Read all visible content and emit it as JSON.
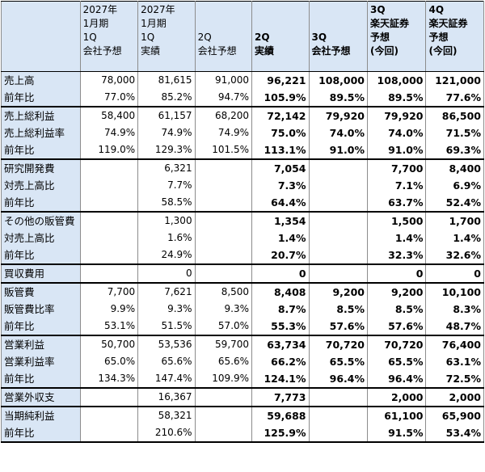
{
  "headers": [
    {
      "lines": [
        ""
      ],
      "bold": false
    },
    {
      "lines": [
        "2027年",
        "1月期",
        "1Q",
        "会社予想"
      ],
      "bold": false
    },
    {
      "lines": [
        "2027年",
        "1月期",
        "1Q",
        "実績"
      ],
      "bold": false
    },
    {
      "lines": [
        "",
        "",
        "2Q",
        "会社予想"
      ],
      "bold": false
    },
    {
      "lines": [
        "",
        "",
        "2Q",
        "実績"
      ],
      "bold": true
    },
    {
      "lines": [
        "",
        "",
        "3Q",
        "会社予想"
      ],
      "bold": true
    },
    {
      "lines": [
        "3Q",
        "楽天証券",
        "予想",
        "(今回)"
      ],
      "bold": true
    },
    {
      "lines": [
        "4Q",
        "楽天証券",
        "予想",
        "(今回)"
      ],
      "bold": true
    }
  ],
  "rows": [
    {
      "label": "売上高",
      "cells": [
        "78,000",
        "81,615",
        "91,000",
        "96,221",
        "108,000",
        "108,000",
        "121,000"
      ],
      "group_start": true
    },
    {
      "label": "前年比",
      "cells": [
        "77.0%",
        "85.2%",
        "94.7%",
        "105.9%",
        "89.5%",
        "89.5%",
        "77.6%"
      ]
    },
    {
      "label": "売上総利益",
      "cells": [
        "58,400",
        "61,157",
        "68,200",
        "72,142",
        "79,920",
        "79,920",
        "86,500"
      ],
      "group_start": true
    },
    {
      "label": "売上総利益率",
      "cells": [
        "74.9%",
        "74.9%",
        "74.9%",
        "75.0%",
        "74.0%",
        "74.0%",
        "71.5%"
      ]
    },
    {
      "label": "前年比",
      "cells": [
        "119.0%",
        "129.3%",
        "101.5%",
        "113.1%",
        "91.0%",
        "91.0%",
        "69.3%"
      ]
    },
    {
      "label": "研究開発費",
      "cells": [
        "",
        "6,321",
        "",
        "7,054",
        "",
        "7,700",
        "8,400"
      ],
      "group_start": true
    },
    {
      "label": "対売上高比",
      "cells": [
        "",
        "7.7%",
        "",
        "7.3%",
        "",
        "7.1%",
        "6.9%"
      ]
    },
    {
      "label": "前年比",
      "cells": [
        "",
        "58.5%",
        "",
        "64.4%",
        "",
        "63.7%",
        "52.4%"
      ]
    },
    {
      "label": "その他の販管費",
      "cells": [
        "",
        "1,300",
        "",
        "1,354",
        "",
        "1,500",
        "1,700"
      ],
      "group_start": true
    },
    {
      "label": "対売上高比",
      "cells": [
        "",
        "1.6%",
        "",
        "1.4%",
        "",
        "1.4%",
        "1.4%"
      ]
    },
    {
      "label": "前年比",
      "cells": [
        "",
        "24.9%",
        "",
        "20.7%",
        "",
        "32.3%",
        "32.6%"
      ]
    },
    {
      "label": "買収費用",
      "cells": [
        "",
        "0",
        "",
        "0",
        "",
        "0",
        "0"
      ],
      "group_start": true
    },
    {
      "label": "販管費",
      "cells": [
        "7,700",
        "7,621",
        "8,500",
        "8,408",
        "9,200",
        "9,200",
        "10,100"
      ],
      "group_start": true
    },
    {
      "label": "販管費比率",
      "cells": [
        "9.9%",
        "9.3%",
        "9.3%",
        "8.7%",
        "8.5%",
        "8.5%",
        "8.3%"
      ]
    },
    {
      "label": "前年比",
      "cells": [
        "53.1%",
        "51.5%",
        "57.0%",
        "55.3%",
        "57.6%",
        "57.6%",
        "48.7%"
      ]
    },
    {
      "label": "営業利益",
      "cells": [
        "50,700",
        "53,536",
        "59,700",
        "63,734",
        "70,720",
        "70,720",
        "76,400"
      ],
      "group_start": true
    },
    {
      "label": "営業利益率",
      "cells": [
        "65.0%",
        "65.6%",
        "65.6%",
        "66.2%",
        "65.5%",
        "65.5%",
        "63.1%"
      ]
    },
    {
      "label": "前年比",
      "cells": [
        "134.3%",
        "147.4%",
        "109.9%",
        "124.1%",
        "96.4%",
        "96.4%",
        "72.5%"
      ]
    },
    {
      "label": "営業外収支",
      "cells": [
        "",
        "16,367",
        "",
        "7,773",
        "",
        "2,000",
        "2,000"
      ],
      "group_start": true
    },
    {
      "label": "当期純利益",
      "cells": [
        "",
        "58,321",
        "",
        "59,688",
        "",
        "61,100",
        "65,900"
      ],
      "group_start": true
    },
    {
      "label": "前年比",
      "cells": [
        "",
        "210.6%",
        "",
        "125.9%",
        "",
        "91.5%",
        "53.4%"
      ]
    }
  ],
  "bold_columns": [
    3,
    4,
    5,
    6
  ],
  "colors": {
    "header_bg": "#d9e6f5",
    "grid": "#8c8c8c",
    "group_border": "#000000"
  }
}
